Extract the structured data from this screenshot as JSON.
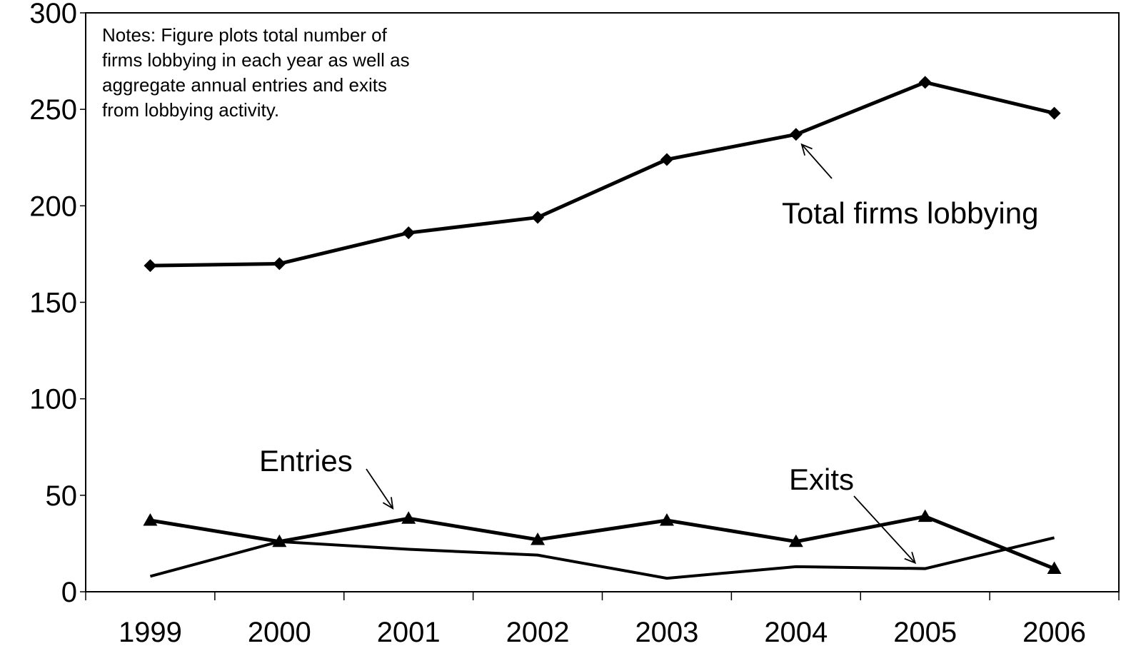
{
  "chart_data": {
    "type": "line",
    "x": [
      "1999",
      "2000",
      "2001",
      "2002",
      "2003",
      "2004",
      "2005",
      "2006"
    ],
    "ylim": [
      0,
      300
    ],
    "yticks": [
      "0",
      "50",
      "100",
      "150",
      "200",
      "250",
      "300"
    ],
    "grid": false,
    "series": [
      {
        "name": "Total firms lobbying",
        "marker": "diamond",
        "values": [
          169,
          170,
          186,
          194,
          224,
          237,
          264,
          248
        ]
      },
      {
        "name": "Entries",
        "marker": "triangle",
        "values": [
          37,
          26,
          38,
          27,
          37,
          26,
          39,
          12
        ]
      },
      {
        "name": "Exits",
        "marker": "none",
        "values": [
          8,
          26,
          22,
          19,
          7,
          13,
          12,
          28
        ]
      }
    ],
    "notes": [
      "Notes: Figure plots total number of",
      "firms lobbying in each year as well as",
      "aggregate annual entries and exits",
      "from lobbying activity."
    ],
    "annotations": [
      {
        "text": "Total firms lobbying",
        "series": 0,
        "point": 5
      },
      {
        "text": "Entries",
        "series": 1,
        "point": 2
      },
      {
        "text": "Exits",
        "series": 2,
        "point": 6
      }
    ]
  }
}
